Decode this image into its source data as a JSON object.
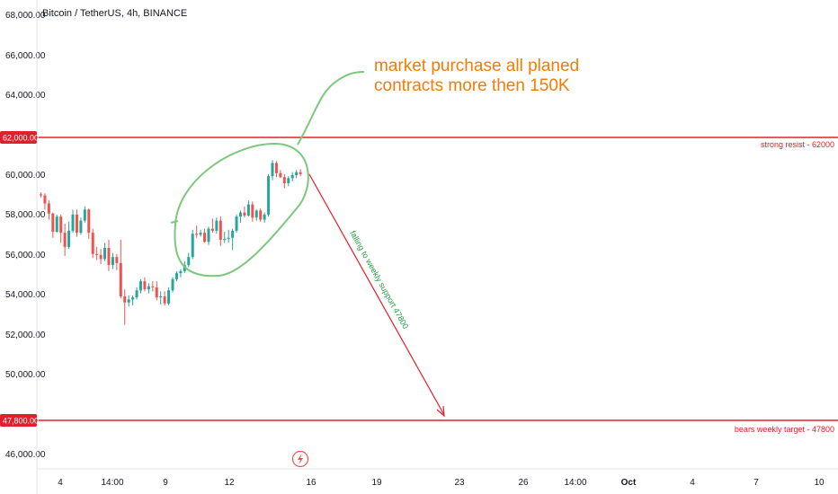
{
  "chart_data": {
    "type": "candlestick",
    "title": "Bitcoin / TetherUS, 4h, BINANCE",
    "y_ticks": [
      "68,000.00",
      "66,000.00",
      "64,000.00",
      "60,000.00",
      "58,000.00",
      "56,000.00",
      "54,000.00",
      "52,000.00",
      "50,000.00",
      "46,000.00"
    ],
    "x_ticks": [
      {
        "label": "4",
        "bold": false
      },
      {
        "label": "14:00",
        "bold": false
      },
      {
        "label": "9",
        "bold": false
      },
      {
        "label": "12",
        "bold": false
      },
      {
        "label": "16",
        "bold": false
      },
      {
        "label": "19",
        "bold": false
      },
      {
        "label": "23",
        "bold": false
      },
      {
        "label": "26",
        "bold": false
      },
      {
        "label": "14:00",
        "bold": false
      },
      {
        "label": "Oct",
        "bold": true
      },
      {
        "label": "4",
        "bold": false
      },
      {
        "label": "7",
        "bold": false
      },
      {
        "label": "10",
        "bold": false
      }
    ],
    "ylim": [
      45800,
      68600
    ],
    "up_color": "#26a69a",
    "down_color": "#ef5350",
    "candles": [
      [
        59050,
        59150,
        58900,
        59000
      ],
      [
        59000,
        59100,
        58300,
        58600
      ],
      [
        58600,
        58750,
        57800,
        58100
      ],
      [
        58100,
        58150,
        56900,
        57200
      ],
      [
        57200,
        58050,
        57150,
        57950
      ],
      [
        57950,
        58050,
        56650,
        57150
      ],
      [
        57150,
        57600,
        56000,
        56450
      ],
      [
        56450,
        57700,
        56350,
        57250
      ],
      [
        57250,
        58300,
        57150,
        58050
      ],
      [
        58050,
        58300,
        56950,
        57150
      ],
      [
        57150,
        57900,
        57050,
        57750
      ],
      [
        57750,
        58450,
        57650,
        58300
      ],
      [
        58300,
        58350,
        56850,
        57150
      ],
      [
        57150,
        57350,
        55900,
        56100
      ],
      [
        56100,
        56450,
        55800,
        56050
      ],
      [
        56050,
        56350,
        55600,
        55850
      ],
      [
        55850,
        56650,
        55750,
        56400
      ],
      [
        56400,
        56800,
        55250,
        55550
      ],
      [
        55550,
        56150,
        55350,
        55950
      ],
      [
        55950,
        56100,
        55300,
        55650
      ],
      [
        55650,
        56800,
        53900,
        54000
      ],
      [
        54000,
        54350,
        52600,
        53700
      ],
      [
        53700,
        54050,
        53500,
        53850
      ],
      [
        53850,
        54050,
        53550,
        53950
      ],
      [
        53950,
        54450,
        53850,
        54300
      ],
      [
        54300,
        54850,
        54150,
        54750
      ],
      [
        54750,
        54950,
        54250,
        54350
      ],
      [
        54350,
        54650,
        54150,
        54500
      ],
      [
        54500,
        54750,
        54250,
        54450
      ],
      [
        54450,
        54750,
        53800,
        53950
      ],
      [
        53950,
        54250,
        53600,
        54000
      ],
      [
        54000,
        54250,
        53550,
        53650
      ],
      [
        53650,
        54450,
        53550,
        54300
      ],
      [
        54300,
        54950,
        54200,
        54850
      ],
      [
        54850,
        55250,
        54750,
        55150
      ],
      [
        55150,
        55350,
        54950,
        55250
      ],
      [
        55250,
        55750,
        55150,
        55550
      ],
      [
        55550,
        56150,
        55450,
        55950
      ],
      [
        55950,
        57300,
        55850,
        57100
      ],
      [
        57100,
        57500,
        56900,
        57050
      ],
      [
        57050,
        57300,
        56950,
        57150
      ],
      [
        57150,
        57350,
        56650,
        56700
      ],
      [
        56700,
        57450,
        56550,
        57350
      ],
      [
        57350,
        57850,
        57150,
        57250
      ],
      [
        57250,
        57900,
        57100,
        57750
      ],
      [
        57750,
        57950,
        56500,
        56800
      ],
      [
        56800,
        57200,
        56650,
        56850
      ],
      [
        56850,
        57300,
        56650,
        56900
      ],
      [
        56900,
        57350,
        56300,
        57250
      ],
      [
        57250,
        58050,
        57150,
        57950
      ],
      [
        57950,
        58250,
        57650,
        58150
      ],
      [
        58150,
        58450,
        57900,
        58000
      ],
      [
        58000,
        58750,
        57950,
        58550
      ],
      [
        58550,
        58700,
        57700,
        57900
      ],
      [
        57900,
        58300,
        57750,
        58250
      ],
      [
        58250,
        58350,
        57700,
        57800
      ],
      [
        57800,
        58150,
        57650,
        58050
      ],
      [
        58050,
        60050,
        57950,
        59950
      ],
      [
        59950,
        60750,
        59750,
        60600
      ],
      [
        60600,
        60700,
        59900,
        60100
      ],
      [
        60100,
        60250,
        59850,
        59900
      ],
      [
        59900,
        60050,
        59350,
        59600
      ],
      [
        59600,
        59950,
        59450,
        59850
      ],
      [
        59850,
        60150,
        59700,
        60000
      ],
      [
        60000,
        60250,
        59850,
        60150
      ],
      [
        60150,
        60300,
        59950,
        60050
      ]
    ],
    "hlines": [
      {
        "price": 62000,
        "tag": "62,000.00",
        "label": "strong resist - 62000",
        "color": "#e0202a"
      },
      {
        "price": 47800,
        "tag": "47,800.00",
        "label": "bears weekly target - 47800",
        "color": "#e0202a"
      }
    ],
    "annotations": {
      "note_lines": [
        "market purchase all planed",
        "contracts more then 150K"
      ],
      "note_color": "#f57c00",
      "diag_label": "falling to weekly support 47800",
      "diag_color": "#1e9e3e",
      "ellipse_color": "#7cc87c",
      "arrow_color": "#e0202a"
    }
  }
}
